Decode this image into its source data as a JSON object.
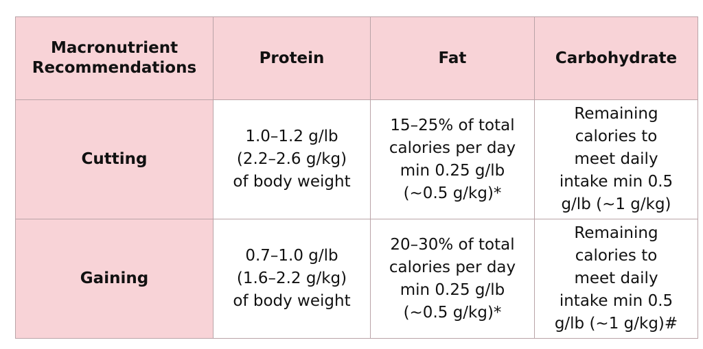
{
  "colors": {
    "header_bg": "#f8d3d7",
    "row_label_bg": "#f8d3d7",
    "cell_bg": "#ffffff",
    "border": "#b9a3a7",
    "text": "#111111"
  },
  "table": {
    "header": {
      "corner_line1": "Macronutrient",
      "corner_line2": "Recommendations",
      "protein": "Protein",
      "fat": "Fat",
      "carbohydrate": "Carbohydrate"
    },
    "rows": [
      {
        "label": "Cutting",
        "protein": [
          "1.0–1.2 g/lb",
          "(2.2–2.6 g/kg)",
          "of body weight"
        ],
        "fat": [
          "15–25% of total",
          "calories per day",
          "min 0.25 g/lb",
          "(~0.5 g/kg)*"
        ],
        "carbohydrate": [
          "Remaining",
          "calories to",
          "meet daily",
          "intake min 0.5",
          "g/lb (~1 g/kg)"
        ]
      },
      {
        "label": "Gaining",
        "protein": [
          "0.7–1.0 g/lb",
          "(1.6–2.2 g/kg)",
          "of body weight"
        ],
        "fat": [
          "20–30% of total",
          "calories per day",
          "min 0.25 g/lb",
          "(~0.5 g/kg)*"
        ],
        "carbohydrate": [
          "Remaining",
          "calories to",
          "meet daily",
          "intake min 0.5",
          "g/lb (~1 g/kg)#"
        ]
      }
    ]
  }
}
